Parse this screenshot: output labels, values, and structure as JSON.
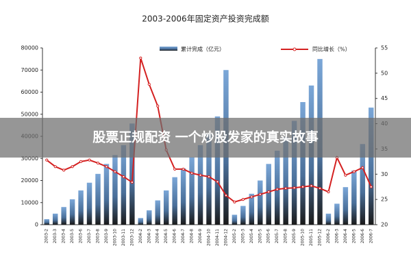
{
  "chart_data": {
    "type": "bar-line",
    "title": "2003-2006年固定资产投资完成额",
    "banner": "股票正规配资 一个炒股发家的真实故事",
    "categories": [
      "2003-2",
      "2003-3",
      "2003-4",
      "2003-5",
      "2003-6",
      "2003-7",
      "2003-8",
      "2003-9",
      "2003-10",
      "2003-11",
      "2003-12",
      "2004-2",
      "2004-3",
      "2004-4",
      "2004-5",
      "2004-6",
      "2004-7",
      "2004-8",
      "2004-9",
      "2004-10",
      "2004-11",
      "2004-12",
      "2005-2",
      "2005-3",
      "2005-4",
      "2005-5",
      "2005-6",
      "2005-7",
      "2005-8",
      "2005-9",
      "2005-10",
      "2005-11",
      "2005-12",
      "2006-2",
      "2006-3",
      "2006-4",
      "2006-5",
      "2006-6",
      "2006-7"
    ],
    "series": [
      {
        "name": "累计完成（亿元）",
        "color": "#7ba7d8",
        "values": [
          2500,
          5000,
          8000,
          11500,
          15500,
          19000,
          23000,
          27500,
          31500,
          36000,
          45800,
          3000,
          6500,
          11000,
          15500,
          21500,
          25500,
          30500,
          36000,
          41000,
          49000,
          70000,
          4500,
          8500,
          14000,
          20000,
          27500,
          33500,
          39500,
          47000,
          55500,
          63000,
          75000,
          5000,
          9500,
          17000,
          24500,
          36500,
          53000
        ]
      },
      {
        "name": "同比增长（%）",
        "color": "#d42020",
        "axis": "y2",
        "values": [
          32.8,
          31.5,
          30.8,
          31.5,
          32.5,
          32.8,
          32.2,
          31.5,
          30.5,
          29.5,
          28.4,
          53,
          47.8,
          43.5,
          34.8,
          31,
          31,
          30.2,
          29.8,
          29.5,
          28.5,
          25.8,
          24.5,
          25,
          25.5,
          26,
          26.5,
          27,
          27.2,
          27.3,
          27.5,
          27.7,
          27.2,
          26.5,
          33.3,
          29.8,
          30.5,
          31.3,
          27.5
        ]
      }
    ],
    "ylim": [
      0,
      80000
    ],
    "yticks": [
      0,
      10000,
      20000,
      30000,
      40000,
      50000,
      60000,
      70000,
      80000
    ],
    "y2lim": [
      20,
      55
    ],
    "y2ticks": [
      20,
      25,
      30,
      35,
      40,
      45,
      50,
      55
    ]
  }
}
